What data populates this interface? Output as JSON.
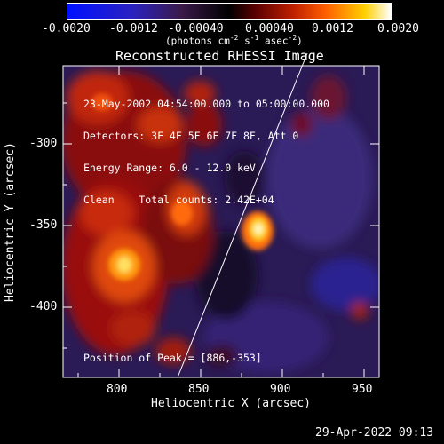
{
  "colorbar": {
    "ticks": [
      "-0.0020",
      "-0.0012",
      "-0.00040",
      "0.00040",
      "0.0012",
      "0.0020"
    ],
    "units_label": "(photons cm",
    "units_exp1": "-2",
    "units_mid1": " s",
    "units_exp2": "-1",
    "units_mid2": " asec",
    "units_exp3": "-2",
    "units_end": ")"
  },
  "map": {
    "title": "Reconstructed RHESSI Image",
    "info_lines": [
      "23-May-2002 04:54:00.000 to 05:00:00.000",
      "Detectors: 3F 4F 5F 6F 7F 8F, Att 0",
      "Energy Range: 6.0 - 12.0 keV",
      "Clean    Total counts: 2.42E+04"
    ],
    "peak_label": "Position of Peak = [886,-353]",
    "x_axis_label": "Heliocentric X (arcsec)",
    "y_axis_label": "Heliocentric Y (arcsec)",
    "x_ticks": [
      "800",
      "850",
      "900",
      "950"
    ],
    "y_ticks": [
      "-300",
      "-350",
      "-400"
    ]
  },
  "timestamp": "29-Apr-2022 09:13"
}
